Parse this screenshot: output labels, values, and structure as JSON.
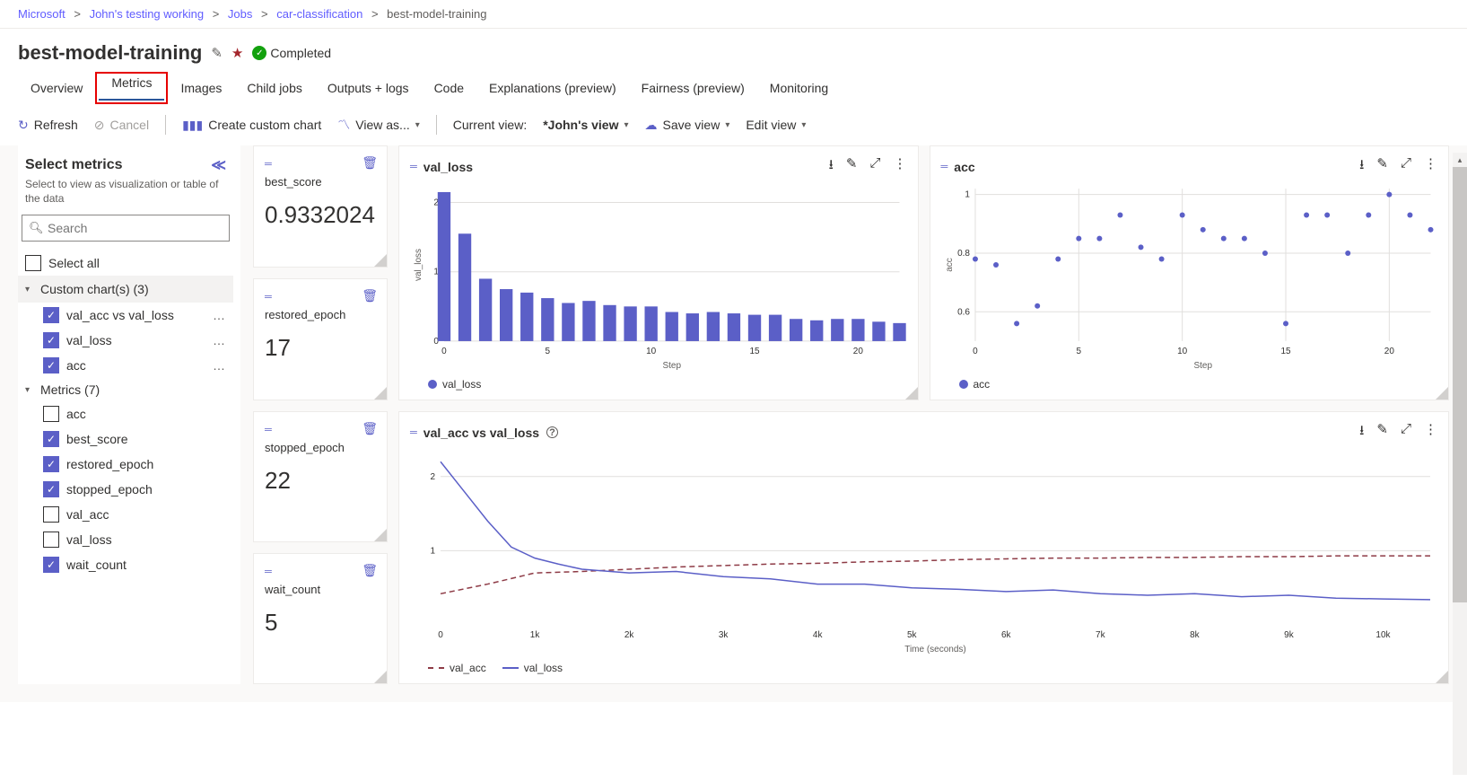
{
  "breadcrumb": {
    "items": [
      {
        "label": "Microsoft",
        "last": false
      },
      {
        "label": "John's testing working",
        "last": false
      },
      {
        "label": "Jobs",
        "last": false
      },
      {
        "label": "car-classification",
        "last": false
      },
      {
        "label": "best-model-training",
        "last": true
      }
    ],
    "sep": ">"
  },
  "title": {
    "text": "best-model-training",
    "status": "Completed"
  },
  "tabs": {
    "items": [
      {
        "label": "Overview"
      },
      {
        "label": "Metrics",
        "active": true,
        "highlight": true
      },
      {
        "label": "Images"
      },
      {
        "label": "Child jobs"
      },
      {
        "label": "Outputs + logs"
      },
      {
        "label": "Code"
      },
      {
        "label": "Explanations (preview)"
      },
      {
        "label": "Fairness (preview)"
      },
      {
        "label": "Monitoring"
      }
    ]
  },
  "toolbar": {
    "refresh": "Refresh",
    "cancel": "Cancel",
    "create_chart": "Create custom chart",
    "view_as": "View as...",
    "current_view_label": "Current view:",
    "current_view": "*John's view",
    "save_view": "Save view",
    "edit_view": "Edit view"
  },
  "sidebar": {
    "title": "Select metrics",
    "hint": "Select to view as visualization or table of the data",
    "search_placeholder": "Search",
    "select_all": "Select all",
    "groups": [
      {
        "title": "Custom chart(s) (3)",
        "items": [
          {
            "label": "val_acc vs val_loss",
            "checked": true,
            "more": true
          },
          {
            "label": "val_loss",
            "checked": true,
            "more": true
          },
          {
            "label": "acc",
            "checked": true,
            "more": true
          }
        ]
      },
      {
        "title": "Metrics (7)",
        "items": [
          {
            "label": "acc",
            "checked": false
          },
          {
            "label": "best_score",
            "checked": true
          },
          {
            "label": "restored_epoch",
            "checked": true
          },
          {
            "label": "stopped_epoch",
            "checked": true
          },
          {
            "label": "val_acc",
            "checked": false
          },
          {
            "label": "val_loss",
            "checked": false
          },
          {
            "label": "wait_count",
            "checked": true
          }
        ]
      }
    ]
  },
  "metric_cards": {
    "best_score": {
      "label": "best_score",
      "value": "0.9332024"
    },
    "restored_epoch": {
      "label": "restored_epoch",
      "value": "17"
    },
    "stopped_epoch": {
      "label": "stopped_epoch",
      "value": "22"
    },
    "wait_count": {
      "label": "wait_count",
      "value": "5"
    }
  },
  "charts": {
    "val_loss": {
      "title": "val_loss",
      "type": "bar",
      "legend": "val_loss",
      "xlabel": "Step",
      "ylabel": "val_loss",
      "color": "#5b5fc7",
      "background": "#ffffff",
      "grid_color": "#e1dfdd",
      "xlim": [
        0,
        22
      ],
      "xtick_step": 5,
      "ylim": [
        0,
        2.2
      ],
      "yticks": [
        0,
        1,
        2
      ],
      "bar_width": 0.65,
      "values": [
        2.15,
        1.55,
        0.9,
        0.75,
        0.7,
        0.62,
        0.55,
        0.58,
        0.52,
        0.5,
        0.5,
        0.42,
        0.4,
        0.42,
        0.4,
        0.38,
        0.38,
        0.32,
        0.3,
        0.32,
        0.32,
        0.28,
        0.26
      ]
    },
    "acc": {
      "title": "acc",
      "type": "scatter",
      "legend": "acc",
      "xlabel": "Step",
      "ylabel": "acc",
      "color": "#5b5fc7",
      "marker_radius": 3,
      "background": "#ffffff",
      "grid_color": "#e1dfdd",
      "xlim": [
        0,
        22
      ],
      "xtick_step": 5,
      "ylim": [
        0.5,
        1.02
      ],
      "yticks": [
        0.6,
        0.8,
        1
      ],
      "points": [
        [
          0,
          0.78
        ],
        [
          1,
          0.76
        ],
        [
          2,
          0.56
        ],
        [
          3,
          0.62
        ],
        [
          4,
          0.78
        ],
        [
          5,
          0.85
        ],
        [
          6,
          0.85
        ],
        [
          7,
          0.93
        ],
        [
          8,
          0.82
        ],
        [
          9,
          0.78
        ],
        [
          10,
          0.93
        ],
        [
          11,
          0.88
        ],
        [
          12,
          0.85
        ],
        [
          13,
          0.85
        ],
        [
          14,
          0.8
        ],
        [
          15,
          0.56
        ],
        [
          16,
          0.93
        ],
        [
          17,
          0.93
        ],
        [
          18,
          0.8
        ],
        [
          19,
          0.93
        ],
        [
          20,
          1.0
        ],
        [
          21,
          0.93
        ],
        [
          22,
          0.88
        ]
      ]
    },
    "combo": {
      "title": "val_acc vs val_loss",
      "type": "line",
      "xlabel": "Time (seconds)",
      "background": "#ffffff",
      "grid_color": "#e1dfdd",
      "xlim": [
        0,
        10500
      ],
      "xticks": [
        0,
        1000,
        2000,
        3000,
        4000,
        5000,
        6000,
        7000,
        8000,
        9000,
        10000
      ],
      "xtick_labels": [
        "0",
        "1k",
        "2k",
        "3k",
        "4k",
        "5k",
        "6k",
        "7k",
        "8k",
        "9k",
        "10k"
      ],
      "ylim": [
        0,
        2.3
      ],
      "yticks": [
        1,
        2
      ],
      "line_width": 1.5,
      "series": [
        {
          "name": "val_acc",
          "color": "#8e3b46",
          "dash": true,
          "points": [
            [
              0,
              0.42
            ],
            [
              500,
              0.55
            ],
            [
              1000,
              0.7
            ],
            [
              1500,
              0.72
            ],
            [
              2000,
              0.75
            ],
            [
              2500,
              0.78
            ],
            [
              3000,
              0.8
            ],
            [
              3500,
              0.82
            ],
            [
              4000,
              0.83
            ],
            [
              4500,
              0.85
            ],
            [
              5000,
              0.86
            ],
            [
              5500,
              0.88
            ],
            [
              6000,
              0.89
            ],
            [
              6500,
              0.9
            ],
            [
              7000,
              0.9
            ],
            [
              7500,
              0.91
            ],
            [
              8000,
              0.91
            ],
            [
              8500,
              0.92
            ],
            [
              9000,
              0.92
            ],
            [
              9500,
              0.93
            ],
            [
              10000,
              0.93
            ],
            [
              10500,
              0.93
            ]
          ]
        },
        {
          "name": "val_loss",
          "color": "#5b5fc7",
          "dash": false,
          "points": [
            [
              0,
              2.2
            ],
            [
              250,
              1.8
            ],
            [
              500,
              1.4
            ],
            [
              750,
              1.05
            ],
            [
              1000,
              0.9
            ],
            [
              1250,
              0.82
            ],
            [
              1500,
              0.75
            ],
            [
              2000,
              0.7
            ],
            [
              2500,
              0.72
            ],
            [
              3000,
              0.65
            ],
            [
              3500,
              0.62
            ],
            [
              4000,
              0.55
            ],
            [
              4500,
              0.55
            ],
            [
              5000,
              0.5
            ],
            [
              5500,
              0.48
            ],
            [
              6000,
              0.45
            ],
            [
              6500,
              0.47
            ],
            [
              7000,
              0.42
            ],
            [
              7500,
              0.4
            ],
            [
              8000,
              0.42
            ],
            [
              8500,
              0.38
            ],
            [
              9000,
              0.4
            ],
            [
              9500,
              0.36
            ],
            [
              10000,
              0.35
            ],
            [
              10500,
              0.34
            ]
          ]
        }
      ]
    }
  }
}
